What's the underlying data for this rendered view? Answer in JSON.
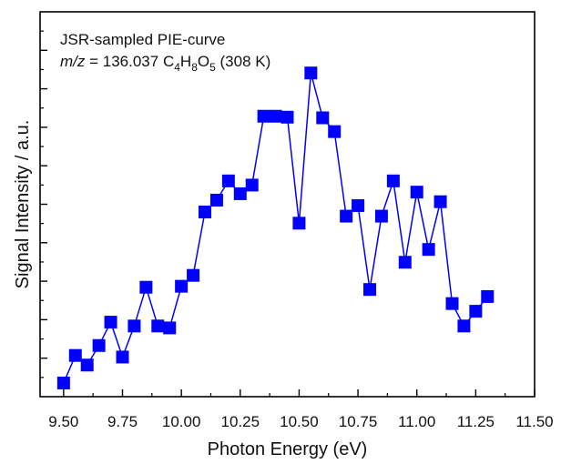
{
  "chart_data": {
    "type": "line",
    "title": "",
    "xlabel": "Photon Energy (eV)",
    "ylabel": "Signal Intensity / a.u.",
    "xlim": [
      9.4,
      11.5
    ],
    "ylim": [
      0,
      1
    ],
    "y_tick_labels_shown": false,
    "grid": false,
    "x_ticks": [
      "9.50",
      "9.75",
      "10.00",
      "10.25",
      "10.50",
      "10.75",
      "11.00",
      "11.25",
      "11.50"
    ],
    "annotation": {
      "line1": "JSR-sampled PIE-curve",
      "line2_prefix": "m/z",
      "line2_value": " = 136.037 C",
      "formula_C_sub": "4",
      "formula_H": "H",
      "formula_H_sub": "8",
      "formula_O": "O",
      "formula_O_sub": "5",
      "formula_tail": " (308 K)"
    },
    "series": [
      {
        "color": "#0000ff",
        "marker": "square",
        "x": [
          9.5,
          9.55,
          9.6,
          9.65,
          9.7,
          9.75,
          9.8,
          9.85,
          9.9,
          9.95,
          10.0,
          10.05,
          10.1,
          10.15,
          10.2,
          10.25,
          10.3,
          10.35,
          10.4,
          10.45,
          10.5,
          10.55,
          10.6,
          10.65,
          10.7,
          10.75,
          10.8,
          10.85,
          10.9,
          10.95,
          11.0,
          11.05,
          11.1,
          11.15,
          11.2,
          11.25,
          11.3
        ],
        "y": [
          0.02,
          0.106,
          0.076,
          0.137,
          0.21,
          0.101,
          0.198,
          0.319,
          0.198,
          0.192,
          0.322,
          0.356,
          0.554,
          0.591,
          0.651,
          0.611,
          0.638,
          0.853,
          0.853,
          0.85,
          0.519,
          0.988,
          0.848,
          0.805,
          0.541,
          0.574,
          0.312,
          0.541,
          0.651,
          0.397,
          0.616,
          0.437,
          0.586,
          0.268,
          0.198,
          0.244,
          0.29
        ]
      }
    ]
  }
}
